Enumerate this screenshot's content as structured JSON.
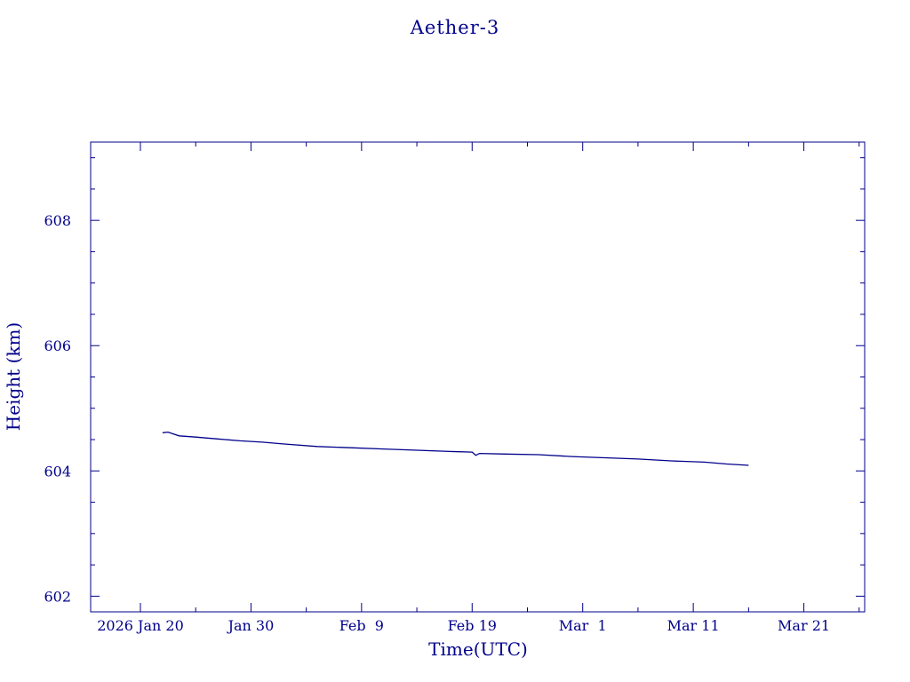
{
  "chart_data": {
    "type": "line",
    "title": "Aether-3",
    "xlabel": "Time(UTC)",
    "ylabel": "Height (km)",
    "color": "#00008b",
    "xlim": [
      "2026-01-15T12:00",
      "2026-03-26T12:00"
    ],
    "ylim": [
      601.75,
      609.25
    ],
    "x_ticks": [
      {
        "date": "2026-01-20",
        "label": "2026 Jan 20"
      },
      {
        "date": "2026-01-30",
        "label": "Jan 30"
      },
      {
        "date": "2026-02-09",
        "label": "Feb  9"
      },
      {
        "date": "2026-02-19",
        "label": "Feb 19"
      },
      {
        "date": "2026-03-01",
        "label": "Mar  1"
      },
      {
        "date": "2026-03-11",
        "label": "Mar 11"
      },
      {
        "date": "2026-03-21",
        "label": "Mar 21"
      }
    ],
    "y_ticks": [
      602,
      604,
      606,
      608
    ],
    "series": [
      {
        "x": [
          "2026-01-22T00:00",
          "2026-01-22T12:00",
          "2026-01-23T00:00",
          "2026-01-23T12:00",
          "2026-01-25T00:00",
          "2026-01-27T00:00",
          "2026-01-29T00:00",
          "2026-01-31T00:00",
          "2026-02-02T00:00",
          "2026-02-05T00:00",
          "2026-02-08T00:00",
          "2026-02-11T00:00",
          "2026-02-14T00:00",
          "2026-02-17T00:00",
          "2026-02-19T00:00",
          "2026-02-19T08:00",
          "2026-02-19T16:00",
          "2026-02-22T00:00",
          "2026-02-25T00:00",
          "2026-02-28T00:00",
          "2026-03-03T00:00",
          "2026-03-06T00:00",
          "2026-03-09T00:00",
          "2026-03-12T00:00",
          "2026-03-14T00:00",
          "2026-03-16T00:00"
        ],
        "y": [
          604.61,
          604.62,
          604.59,
          604.56,
          604.54,
          604.51,
          604.48,
          604.46,
          604.43,
          604.39,
          604.37,
          604.35,
          604.33,
          604.31,
          604.3,
          604.25,
          604.28,
          604.27,
          604.26,
          604.23,
          604.21,
          604.19,
          604.16,
          604.14,
          604.11,
          604.09
        ]
      }
    ],
    "grid": false,
    "legend": "none"
  }
}
